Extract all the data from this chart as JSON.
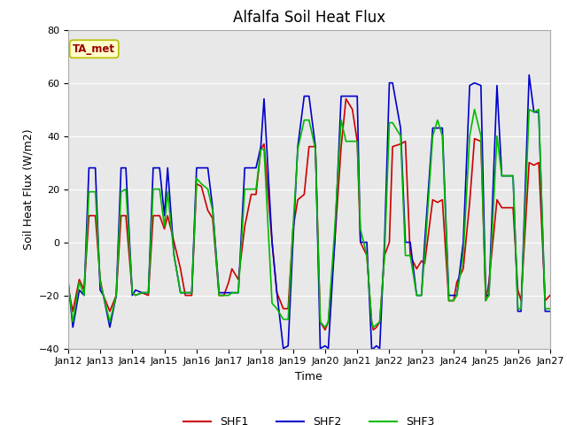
{
  "title": "Alfalfa Soil Heat Flux",
  "xlabel": "Time",
  "ylabel": "Soil Heat Flux (W/m2)",
  "ylim": [
    -40,
    80
  ],
  "annotation_text": "TA_met",
  "annotation_bg": "#ffffcc",
  "annotation_border": "#bbbb00",
  "annotation_text_color": "#990000",
  "legend_labels": [
    "SHF1",
    "SHF2",
    "SHF3"
  ],
  "legend_colors": [
    "#cc0000",
    "#0000cc",
    "#00bb00"
  ],
  "background_color": "#e8e8e8",
  "grid_color": "#ffffff",
  "x_tick_labels": [
    "Jan 12",
    "Jan 13",
    "Jan 14",
    "Jan 15",
    "Jan 16",
    "Jan 17",
    "Jan 18",
    "Jan 19",
    "Jan 20",
    "Jan 21",
    "Jan 22",
    "Jan 23",
    "Jan 24",
    "Jan 25",
    "Jan 26",
    "Jan 27"
  ],
  "shf1_x": [
    0.0,
    0.05,
    0.15,
    0.35,
    0.5,
    0.65,
    0.85,
    1.0,
    1.1,
    1.3,
    1.5,
    1.65,
    1.8,
    2.0,
    2.1,
    2.3,
    2.5,
    2.65,
    2.85,
    3.0,
    3.1,
    3.3,
    3.5,
    3.65,
    3.85,
    4.0,
    4.15,
    4.35,
    4.5,
    4.7,
    4.85,
    5.0,
    5.1,
    5.3,
    5.5,
    5.7,
    5.85,
    6.0,
    6.1,
    6.35,
    6.5,
    6.7,
    6.85,
    7.0,
    7.15,
    7.35,
    7.5,
    7.7,
    7.85,
    8.0,
    8.1,
    8.3,
    8.5,
    8.65,
    8.85,
    9.0,
    9.1,
    9.3,
    9.45,
    9.5,
    9.6,
    9.7,
    9.85,
    10.0,
    10.1,
    10.35,
    10.5,
    10.65,
    10.85,
    11.0,
    11.1,
    11.35,
    11.5,
    11.65,
    11.85,
    12.0,
    12.1,
    12.3,
    12.5,
    12.65,
    12.85,
    13.0,
    13.1,
    13.35,
    13.5,
    13.65,
    13.85,
    14.0,
    14.1,
    14.35,
    14.5,
    14.65,
    14.85,
    15.0
  ],
  "shf1": [
    -14,
    -20,
    -26,
    -14,
    -18,
    10,
    10,
    -14,
    -20,
    -26,
    -20,
    10,
    10,
    -19,
    -20,
    -19,
    -20,
    10,
    10,
    5,
    10,
    0,
    -10,
    -20,
    -20,
    22,
    21,
    12,
    9,
    -20,
    -20,
    -15,
    -10,
    -14,
    6,
    18,
    18,
    35,
    37,
    0,
    -19,
    -25,
    -25,
    5,
    16,
    18,
    36,
    36,
    -30,
    -33,
    -30,
    0,
    36,
    54,
    50,
    38,
    0,
    -5,
    -30,
    -33,
    -32,
    -30,
    -5,
    0,
    36,
    37,
    38,
    -5,
    -10,
    -7,
    -8,
    16,
    15,
    16,
    -22,
    -22,
    -15,
    -10,
    15,
    39,
    38,
    -22,
    -15,
    16,
    13,
    13,
    13,
    -18,
    -22,
    30,
    29,
    30,
    -22,
    -20
  ],
  "shf2_x": [
    0.0,
    0.05,
    0.15,
    0.35,
    0.5,
    0.65,
    0.85,
    1.0,
    1.1,
    1.3,
    1.5,
    1.65,
    1.8,
    2.0,
    2.1,
    2.3,
    2.5,
    2.65,
    2.85,
    3.0,
    3.1,
    3.3,
    3.5,
    3.65,
    3.85,
    4.0,
    4.15,
    4.35,
    4.5,
    4.7,
    4.85,
    5.0,
    5.1,
    5.3,
    5.5,
    5.7,
    5.85,
    6.0,
    6.1,
    6.35,
    6.5,
    6.7,
    6.85,
    7.0,
    7.15,
    7.35,
    7.5,
    7.7,
    7.85,
    8.0,
    8.1,
    8.3,
    8.5,
    8.65,
    8.85,
    9.0,
    9.1,
    9.3,
    9.45,
    9.5,
    9.6,
    9.7,
    9.85,
    10.0,
    10.1,
    10.35,
    10.5,
    10.65,
    10.85,
    11.0,
    11.1,
    11.35,
    11.5,
    11.65,
    11.85,
    12.0,
    12.1,
    12.3,
    12.5,
    12.65,
    12.85,
    13.0,
    13.1,
    13.35,
    13.5,
    13.65,
    13.85,
    14.0,
    14.1,
    14.35,
    14.5,
    14.65,
    14.85,
    15.0
  ],
  "shf2": [
    -18,
    -20,
    -32,
    -18,
    -20,
    28,
    28,
    -18,
    -20,
    -32,
    -20,
    28,
    28,
    -20,
    -18,
    -19,
    -19,
    28,
    28,
    10,
    28,
    -5,
    -19,
    -19,
    -19,
    28,
    28,
    28,
    13,
    -19,
    -19,
    -19,
    -19,
    -19,
    28,
    28,
    28,
    36,
    54,
    0,
    -19,
    -40,
    -39,
    0,
    36,
    55,
    55,
    36,
    -40,
    -39,
    -40,
    0,
    55,
    55,
    55,
    55,
    0,
    0,
    -40,
    -40,
    -39,
    -40,
    0,
    60,
    60,
    43,
    0,
    0,
    -20,
    -20,
    0,
    43,
    43,
    43,
    -20,
    -20,
    -20,
    0,
    59,
    60,
    59,
    -20,
    -20,
    59,
    25,
    25,
    25,
    -26,
    -26,
    63,
    49,
    49,
    -26,
    -26
  ],
  "shf3_x": [
    0.0,
    0.05,
    0.15,
    0.35,
    0.5,
    0.65,
    0.85,
    1.0,
    1.1,
    1.3,
    1.5,
    1.65,
    1.8,
    2.0,
    2.1,
    2.3,
    2.5,
    2.65,
    2.85,
    3.0,
    3.1,
    3.3,
    3.5,
    3.65,
    3.85,
    4.0,
    4.15,
    4.35,
    4.5,
    4.7,
    4.85,
    5.0,
    5.1,
    5.3,
    5.5,
    5.7,
    5.85,
    6.0,
    6.1,
    6.35,
    6.5,
    6.7,
    6.85,
    7.0,
    7.15,
    7.35,
    7.5,
    7.7,
    7.85,
    8.0,
    8.1,
    8.3,
    8.5,
    8.65,
    8.85,
    9.0,
    9.1,
    9.3,
    9.45,
    9.5,
    9.6,
    9.7,
    9.85,
    10.0,
    10.1,
    10.35,
    10.5,
    10.65,
    10.85,
    11.0,
    11.1,
    11.35,
    11.5,
    11.65,
    11.85,
    12.0,
    12.1,
    12.3,
    12.5,
    12.65,
    12.85,
    13.0,
    13.1,
    13.35,
    13.5,
    13.65,
    13.85,
    14.0,
    14.1,
    14.35,
    14.5,
    14.65,
    14.85,
    15.0
  ],
  "shf3": [
    -15,
    -20,
    -30,
    -15,
    -20,
    19,
    19,
    -15,
    -20,
    -30,
    -20,
    19,
    20,
    -19,
    -20,
    -19,
    -19,
    20,
    20,
    6,
    19,
    -5,
    -19,
    -19,
    -19,
    24,
    22,
    20,
    12,
    -20,
    -20,
    -20,
    -19,
    -19,
    20,
    20,
    20,
    35,
    35,
    -23,
    -25,
    -29,
    -29,
    5,
    35,
    46,
    46,
    35,
    -30,
    -32,
    -30,
    5,
    46,
    38,
    38,
    38,
    5,
    -5,
    -30,
    -32,
    -31,
    -30,
    -5,
    45,
    45,
    40,
    -5,
    -5,
    -20,
    -20,
    -5,
    40,
    46,
    40,
    -22,
    -22,
    -20,
    -5,
    40,
    50,
    40,
    -22,
    -20,
    40,
    25,
    25,
    25,
    -25,
    -25,
    50,
    49,
    50,
    -25,
    -25
  ]
}
